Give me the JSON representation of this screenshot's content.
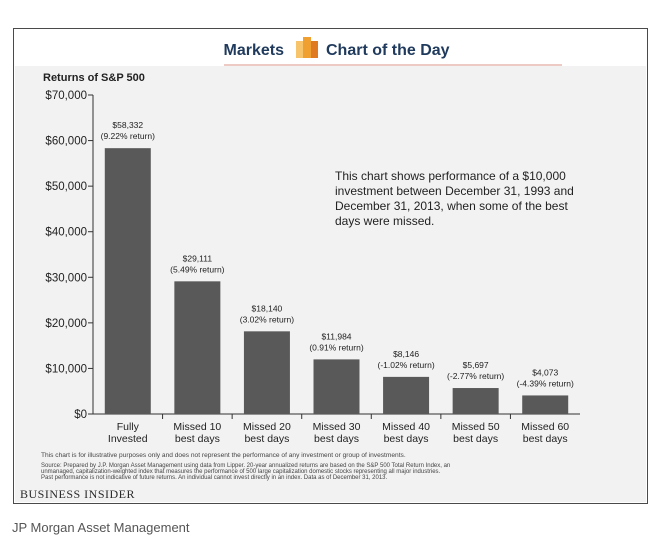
{
  "header": {
    "brand_left": "Markets",
    "brand_right": "Chart of the Day"
  },
  "annotation": {
    "lines": [
      "This chart shows performance of a $10,000",
      "investment between December 31, 1993 and",
      "December 31, 2013, when some of the best",
      "days were missed."
    ]
  },
  "footer": {
    "disclaimer": "This chart is for illustrative purposes only and does not represent the performance of any investment or group of investments.",
    "source_lines": [
      "Source: Prepared by J.P. Morgan Asset Management using data from Lipper. 20-year annualized returns are based on the S&P 500 Total Return Index, an",
      "unmanaged, capitalization-weighted index that measures the performance of 500 large capitalization domestic stocks representing all major industries.",
      "Past performance is not indicative of future returns. An individual cannot invest directly in an index. Data as of December 31, 2013."
    ],
    "publisher": "BUSINESS INSIDER"
  },
  "caption": "JP Morgan Asset Management",
  "colors": {
    "bar": "#595959",
    "header_text": "#1f3a5c",
    "logo_orange": "#f0a030",
    "rule": "#e8b9b0",
    "plot_bg": "#f2f2f2"
  },
  "chart_data": {
    "type": "bar",
    "ylabel": "Returns of S&P 500",
    "ylim": [
      0,
      70000
    ],
    "yticks": [
      0,
      10000,
      20000,
      30000,
      40000,
      50000,
      60000,
      70000
    ],
    "ytick_labels": [
      "$0",
      "$10,000",
      "$20,000",
      "$30,000",
      "$40,000",
      "$50,000",
      "$60,000",
      "$70,000"
    ],
    "grid": false,
    "categories": [
      [
        "Fully",
        "Invested"
      ],
      [
        "Missed 10",
        "best days"
      ],
      [
        "Missed 20",
        "best days"
      ],
      [
        "Missed 30",
        "best days"
      ],
      [
        "Missed 40",
        "best days"
      ],
      [
        "Missed 50",
        "best days"
      ],
      [
        "Missed 60",
        "best days"
      ]
    ],
    "values": [
      58332,
      29111,
      18140,
      11984,
      8146,
      5697,
      4073
    ],
    "value_labels": [
      "$58,332",
      "$29,111",
      "$18,140",
      "$11,984",
      "$8,146",
      "$5,697",
      "$4,073"
    ],
    "return_labels": [
      "(9.22% return)",
      "(5.49% return)",
      "(3.02% return)",
      "(0.91% return)",
      "(-1.02% return)",
      "(-2.77% return)",
      "(-4.39% return)"
    ]
  }
}
